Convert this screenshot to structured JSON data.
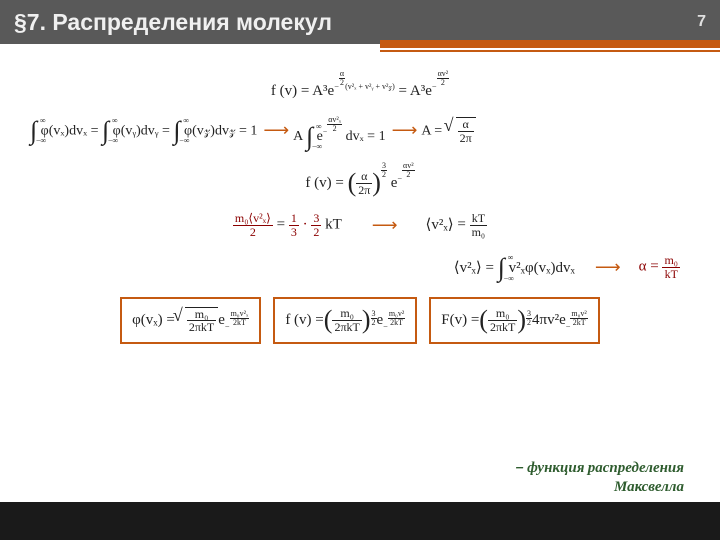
{
  "header": {
    "title": "§7. Распределения молекул",
    "page": "7"
  },
  "colors": {
    "accent": "#c55a11",
    "header_bg": "#595959",
    "footer_bg": "#1a1a1a",
    "caption": "#2e5c2e",
    "highlight": "#8b0000"
  },
  "eq": {
    "r1_left": "f (v) = A³e",
    "r1_exp1_top": "α",
    "r1_exp1_bot": "2",
    "r1_exp1_paren": "(v²ₓ + v²ᵧ + v²𝓏)",
    "r1_mid": " = A³e",
    "r1_exp2_top": "αv²",
    "r1_exp2_bot": "2",
    "r2a_int_top": "∞",
    "r2a_int_bot": "−∞",
    "r2a": "φ(vₓ)dvₓ =",
    "r2b": "φ(vᵧ)dvᵧ =",
    "r2c": "φ(v𝓏)dv𝓏 = 1",
    "r2_arrow": "⟶",
    "r2d_pre": "A",
    "r2d_exp_top": "αv²ₓ",
    "r2d_exp_bot": "2",
    "r2d_post": " dvₓ = 1",
    "r2e_pre": "A = ",
    "r2e_num": "α",
    "r2e_den": "2π",
    "r3_pre": "f (v) = ",
    "r3_num": "α",
    "r3_den": "2π",
    "r3_pow_top": "3",
    "r3_pow_bot": "2",
    "r3_e": "e",
    "r3_exp_top": "αv²",
    "r3_exp_bot": "2",
    "r4a_num": "m₀⟨v²ₓ⟩",
    "r4a_den": "2",
    "r4a_eq": " = ",
    "r4a_f1_top": "1",
    "r4a_f1_bot": "3",
    "r4a_dot": "·",
    "r4a_f2_top": "3",
    "r4a_f2_bot": "2",
    "r4a_post": "kT",
    "r4b_avg": "v²ₓ",
    "r4b_eq": " = ",
    "r4b_num": "kT",
    "r4b_den": "m₀",
    "r5a_avg": "v²ₓ",
    "r5a_eq": " = ",
    "r5a_int": "v²ₓφ(vₓ)dvₓ",
    "r5b_pre": "α = ",
    "r5b_num": "m₀",
    "r5b_den": "kT",
    "box1_pre": "φ(vₓ) = ",
    "box1_sq_num": "m₀",
    "box1_sq_den": "2πkT",
    "box1_e": "e",
    "box1_exp_top": "m₀v²ₓ",
    "box1_exp_bot": "2kT",
    "box2_pre": "f (v) = ",
    "box2_num": "m₀",
    "box2_den": "2πkT",
    "box2_pow_top": "3",
    "box2_pow_bot": "2",
    "box2_e": "e",
    "box2_exp_top": "m₀v²",
    "box2_exp_bot": "2kT",
    "box3_pre": "F(v) = ",
    "box3_num": "m₀",
    "box3_den": "2πkT",
    "box3_pow_top": "3",
    "box3_pow_bot": "2",
    "box3_mid": "4πv²e",
    "box3_exp_top": "m₀v²",
    "box3_exp_bot": "2kT"
  },
  "caption": {
    "line1": "− функция распределения",
    "line2": "Максвелла"
  }
}
